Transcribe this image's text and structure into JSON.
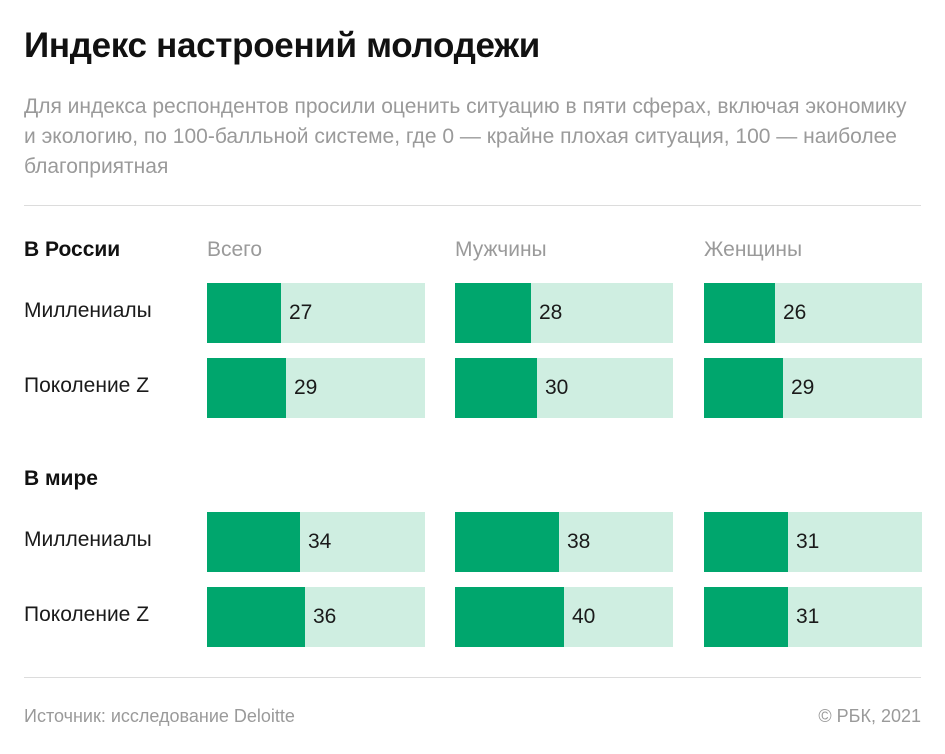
{
  "header": {
    "title": "Индекс настроений молодежи",
    "subtitle": "Для индекса респондентов просили оценить ситуацию в пяти сферах, включая экономику и экологию, по 100-балльной системе, где 0 — крайне плохая ситуация, 100 — наиболее благоприятная"
  },
  "chart_data": {
    "type": "bar",
    "orientation": "horizontal",
    "xlim": [
      0,
      100
    ],
    "columns": [
      "Всего",
      "Мужчины",
      "Женщины"
    ],
    "sections": [
      {
        "name": "В России",
        "rows": [
          {
            "label": "Миллениалы",
            "values": [
              27,
              28,
              26
            ]
          },
          {
            "label": "Поколение Z",
            "values": [
              29,
              30,
              29
            ]
          }
        ]
      },
      {
        "name": "В мире",
        "rows": [
          {
            "label": "Миллениалы",
            "values": [
              34,
              38,
              31
            ]
          },
          {
            "label": "Поколение Z",
            "values": [
              36,
              40,
              31
            ]
          }
        ]
      }
    ],
    "colors": {
      "bar": "#00a66d",
      "track": "#cfeee1"
    }
  },
  "footer": {
    "source": "Источник: исследование Deloitte",
    "copyright": "© РБК, 2021"
  }
}
